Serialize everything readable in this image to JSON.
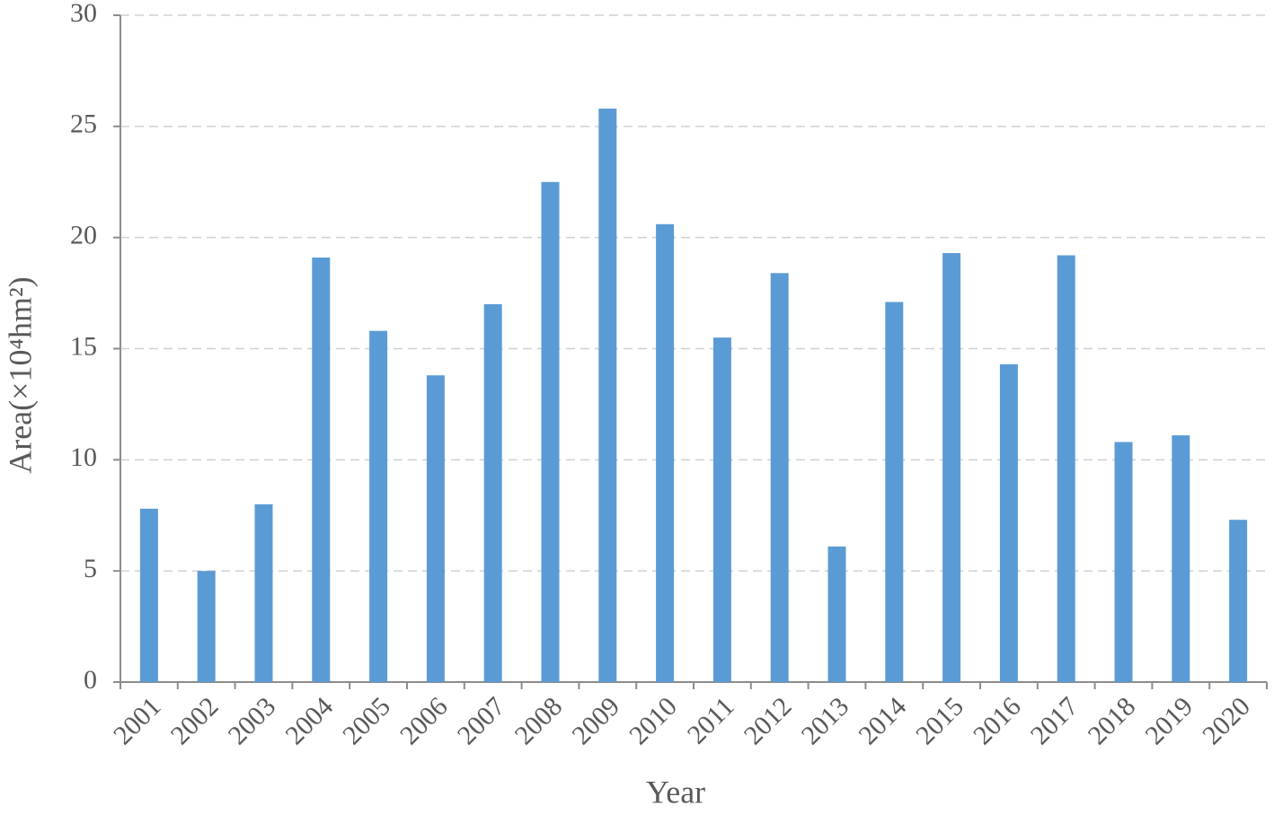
{
  "chart_data": {
    "type": "bar",
    "x_label": "Year",
    "y_label": "Area(×10⁴hm²)",
    "categories": [
      "2001",
      "2002",
      "2003",
      "2004",
      "2005",
      "2006",
      "2007",
      "2008",
      "2009",
      "2010",
      "2011",
      "2012",
      "2013",
      "2014",
      "2015",
      "2016",
      "2017",
      "2018",
      "2019",
      "2020"
    ],
    "values": [
      7.8,
      5.0,
      8.0,
      19.1,
      15.8,
      13.8,
      17.0,
      22.5,
      25.8,
      20.6,
      15.5,
      18.4,
      6.1,
      17.1,
      19.3,
      14.3,
      19.2,
      10.8,
      11.1,
      7.3
    ],
    "color": "#5b9bd5",
    "ylim": [
      0,
      30
    ],
    "yticks": [
      0,
      5,
      10,
      15,
      20,
      25,
      30
    ],
    "grid": true
  }
}
